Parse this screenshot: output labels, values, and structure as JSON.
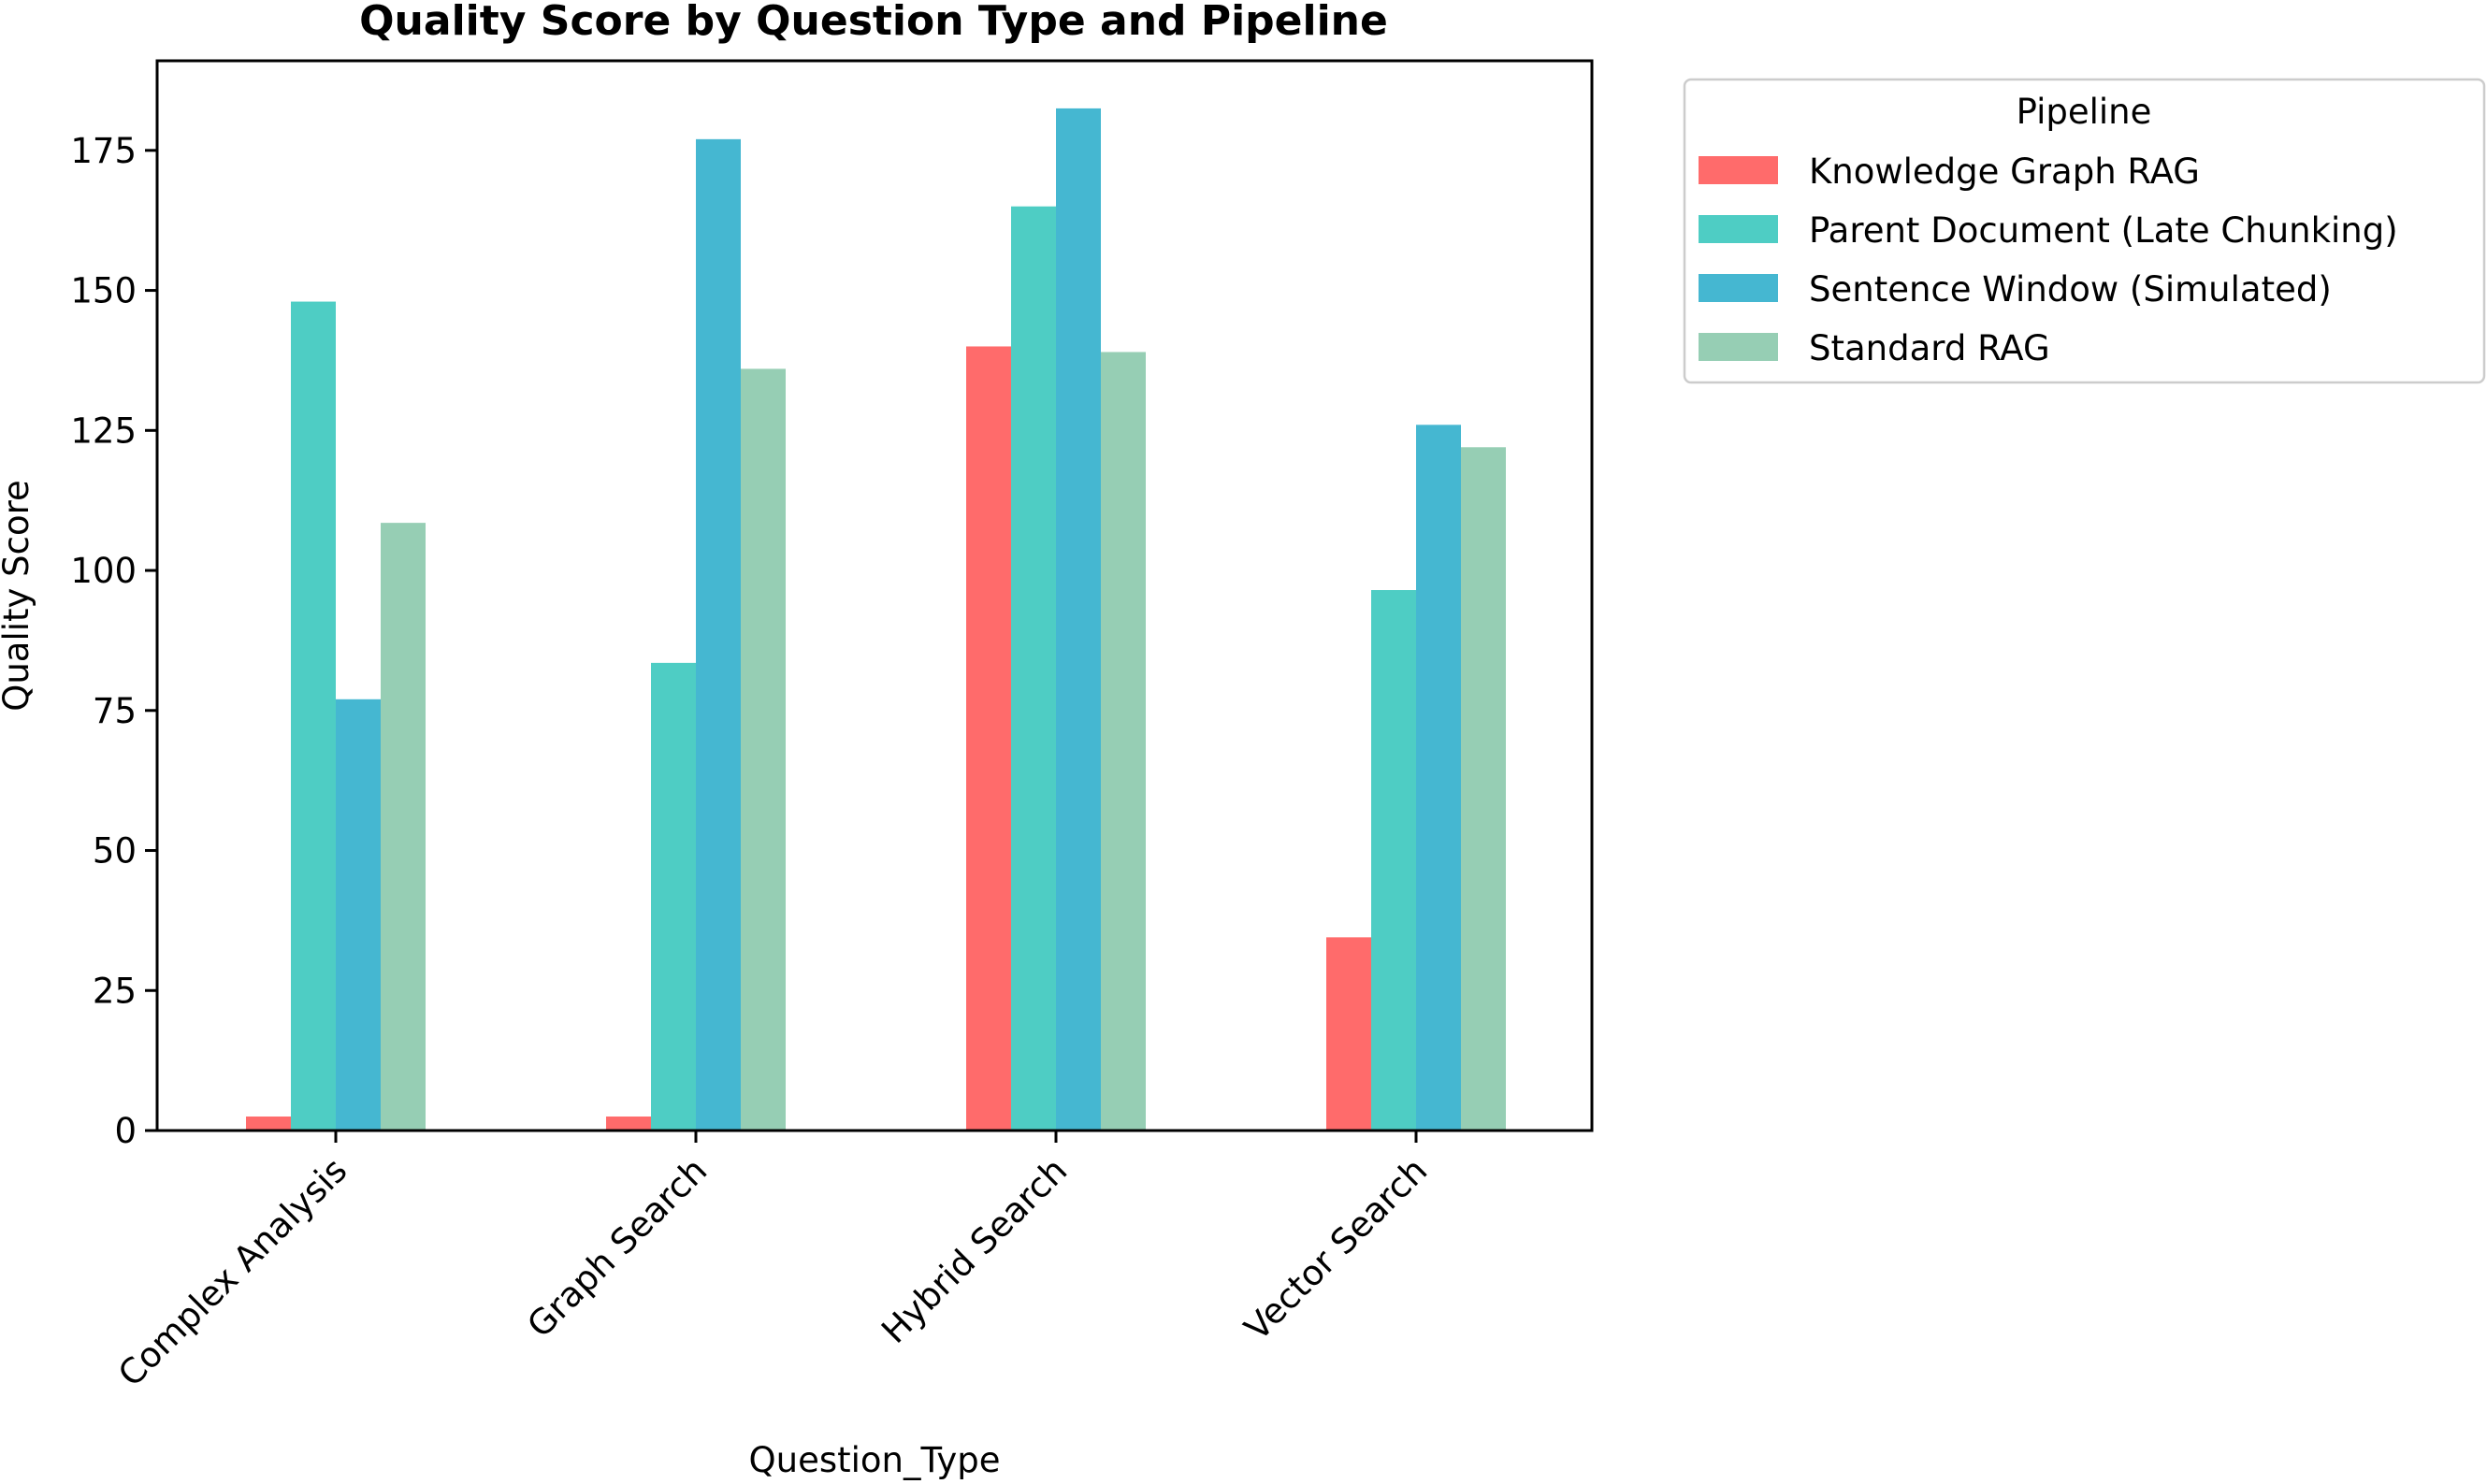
{
  "chart_data": {
    "type": "bar",
    "title": "Quality Score by Question Type and Pipeline",
    "xlabel": "Question_Type",
    "ylabel": "Quality Score",
    "categories": [
      "Complex Analysis",
      "Graph Search",
      "Hybrid Search",
      "Vector Search"
    ],
    "series": [
      {
        "name": "Knowledge Graph RAG",
        "color": "#ff6b6b",
        "values": [
          2.5,
          2.5,
          140,
          34.5
        ]
      },
      {
        "name": "Parent Document (Late Chunking)",
        "color": "#4ecdc4",
        "values": [
          148,
          83.5,
          165,
          96.5
        ]
      },
      {
        "name": "Sentence Window (Simulated)",
        "color": "#45b7d1",
        "values": [
          77,
          177,
          182.5,
          126
        ]
      },
      {
        "name": "Standard RAG",
        "color": "#96ceb4",
        "values": [
          108.5,
          136,
          139,
          122
        ]
      }
    ],
    "ylim": [
      0,
      191
    ],
    "yticks": [
      0,
      25,
      50,
      75,
      100,
      125,
      150,
      175
    ],
    "grid": false,
    "legend": {
      "title": "Pipeline",
      "position": "outside-top-right"
    }
  }
}
